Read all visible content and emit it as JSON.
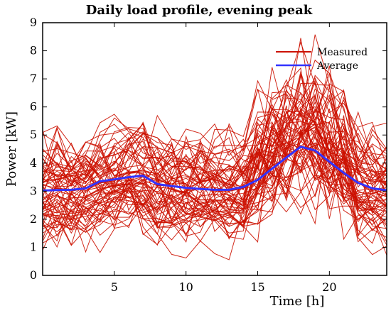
{
  "chart_data": {
    "type": "line",
    "title": "Daily load profile, evening peak",
    "xlabel": "Time [h]",
    "ylabel": "Power [kW]",
    "xlim": [
      0,
      24
    ],
    "ylim": [
      0,
      9
    ],
    "xticks": [
      5,
      10,
      15,
      20
    ],
    "yticks": [
      0,
      1,
      2,
      3,
      4,
      5,
      6,
      7,
      8,
      9
    ],
    "grid": false,
    "legend_position": "top-right",
    "x": [
      0,
      1,
      2,
      3,
      4,
      5,
      6,
      7,
      8,
      9,
      10,
      11,
      12,
      13,
      14,
      15,
      16,
      17,
      18,
      19,
      20,
      21,
      22,
      23,
      24
    ],
    "series": [
      {
        "name": "Measured",
        "color": "#cc1100",
        "values": [
          3.0,
          3.1,
          3.0,
          3.1,
          3.3,
          3.4,
          3.5,
          3.6,
          3.2,
          3.2,
          3.1,
          3.1,
          3.0,
          3.0,
          3.1,
          3.4,
          3.9,
          4.2,
          4.6,
          4.4,
          4.0,
          3.6,
          3.3,
          3.1,
          3.0
        ]
      },
      {
        "name": "Average",
        "color": "#3333ff",
        "values": [
          3.02,
          3.04,
          3.05,
          3.1,
          3.35,
          3.42,
          3.5,
          3.55,
          3.25,
          3.18,
          3.12,
          3.08,
          3.05,
          3.05,
          3.15,
          3.4,
          3.8,
          4.2,
          4.58,
          4.45,
          4.05,
          3.65,
          3.3,
          3.1,
          3.03
        ]
      }
    ]
  }
}
